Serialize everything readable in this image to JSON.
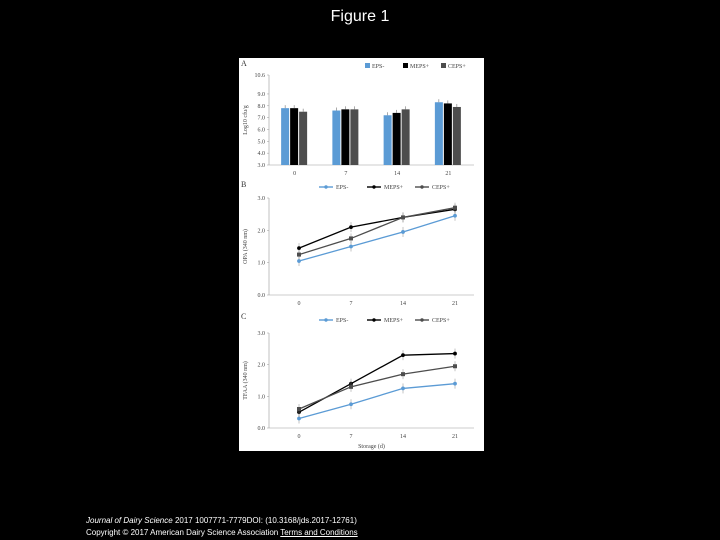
{
  "page": {
    "title": "Figure 1",
    "citation_journal": "Journal of Dairy Science",
    "citation_rest": " 2017 1007771-7779DOI: (10.3168/jds.2017-12761)",
    "copyright": "Copyright © 2017 American Dairy Science Association ",
    "link": "Terms and Conditions"
  },
  "colors": {
    "eps_minus": "#5b9bd5",
    "meps_plus": "#000000",
    "ceps_plus": "#4d4d4d"
  },
  "chart_data": [
    {
      "panel_label": "A",
      "type": "bar",
      "ylabel": "Log10 cfu/g",
      "xlabel": "",
      "ylim": [
        3.0,
        10.6
      ],
      "yticks": [
        "10.6",
        "9.0",
        "8.0",
        "7.0",
        "6.0",
        "5.0",
        "4.0",
        "3.0"
      ],
      "ytick_values": [
        10.6,
        9.0,
        8.0,
        7.0,
        6.0,
        5.0,
        4.0,
        3.0
      ],
      "categories": [
        "0",
        "7",
        "14",
        "21"
      ],
      "legend_placement": "top-right",
      "series": [
        {
          "name": "EPS-",
          "values": [
            7.8,
            7.6,
            7.2,
            8.3
          ]
        },
        {
          "name": "MEPS+",
          "values": [
            7.8,
            7.7,
            7.4,
            8.2
          ]
        },
        {
          "name": "CEPS+",
          "values": [
            7.5,
            7.7,
            7.7,
            7.9
          ]
        }
      ]
    },
    {
      "panel_label": "B",
      "type": "line",
      "ylabel": "OPA (340 nm)",
      "xlabel": "",
      "ylim": [
        0.0,
        3.0
      ],
      "yticks": [
        "3.0",
        "2.0",
        "1.0",
        "0.0"
      ],
      "ytick_values": [
        3.0,
        2.0,
        1.0,
        0.0
      ],
      "x": [
        "0",
        "7",
        "14",
        "21"
      ],
      "legend_placement": "top",
      "series": [
        {
          "name": "EPS-",
          "values": [
            1.05,
            1.5,
            1.95,
            2.45
          ]
        },
        {
          "name": "MEPS+",
          "values": [
            1.45,
            2.1,
            2.4,
            2.65
          ]
        },
        {
          "name": "CEPS+",
          "values": [
            1.25,
            1.75,
            2.4,
            2.7
          ]
        }
      ]
    },
    {
      "panel_label": "C",
      "type": "line",
      "ylabel": "TFAA (340 nm)",
      "xlabel": "Storage (d)",
      "ylim": [
        0.0,
        3.0
      ],
      "yticks": [
        "3.0",
        "2.0",
        "1.0",
        "0.0"
      ],
      "ytick_values": [
        3.0,
        2.0,
        1.0,
        0.0
      ],
      "x": [
        "0",
        "7",
        "14",
        "21"
      ],
      "legend_placement": "top",
      "series": [
        {
          "name": "EPS-",
          "values": [
            0.3,
            0.75,
            1.25,
            1.4
          ]
        },
        {
          "name": "MEPS+",
          "values": [
            0.5,
            1.4,
            2.3,
            2.35
          ]
        },
        {
          "name": "CEPS+",
          "values": [
            0.6,
            1.3,
            1.7,
            1.95
          ]
        }
      ]
    }
  ]
}
